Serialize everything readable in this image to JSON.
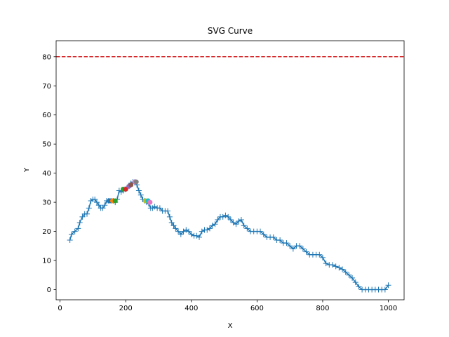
{
  "chart_data": {
    "type": "line",
    "title": "SVG Curve",
    "xlabel": "X",
    "ylabel": "Y",
    "xlim": [
      -12,
      1048
    ],
    "ylim": [
      -3.5,
      85.5
    ],
    "xticks": [
      0,
      200,
      400,
      600,
      800,
      1000
    ],
    "yticks": [
      0,
      10,
      20,
      30,
      40,
      50,
      60,
      70,
      80
    ],
    "grid": false,
    "hline": {
      "y": 80,
      "color": "#d62728",
      "style": "dashed"
    },
    "series": [
      {
        "color": "#1f77b4",
        "marker": "+",
        "x": [
          30,
          35,
          45,
          55,
          60,
          68,
          75,
          82,
          88,
          94,
          100,
          106,
          112,
          118,
          124,
          130,
          136,
          142,
          148,
          155,
          162,
          168,
          174,
          180,
          186,
          192,
          198,
          204,
          210,
          216,
          222,
          228,
          234,
          240,
          246,
          252,
          258,
          264,
          270,
          276,
          282,
          288,
          296,
          304,
          312,
          320,
          328,
          334,
          340,
          346,
          352,
          360,
          368,
          376,
          384,
          392,
          400,
          408,
          416,
          424,
          432,
          440,
          448,
          456,
          464,
          472,
          480,
          488,
          496,
          504,
          512,
          520,
          528,
          536,
          544,
          552,
          560,
          570,
          580,
          590,
          600,
          610,
          620,
          630,
          640,
          650,
          660,
          670,
          680,
          690,
          700,
          710,
          720,
          730,
          740,
          750,
          760,
          770,
          780,
          790,
          800,
          810,
          820,
          830,
          840,
          850,
          860,
          870,
          880,
          890,
          900,
          910,
          920,
          930,
          940,
          950,
          960,
          970,
          980,
          990,
          1000
        ],
        "y": [
          17,
          19,
          20,
          21,
          23,
          25,
          26,
          26,
          28,
          30.5,
          31,
          31,
          30,
          29,
          28,
          28,
          29,
          30.5,
          30.5,
          30.5,
          30.5,
          30,
          31,
          34,
          33.5,
          34,
          34.5,
          35,
          35.5,
          36.5,
          37,
          37,
          36,
          34,
          32.5,
          31,
          30.5,
          30,
          29.5,
          28,
          28,
          28.5,
          28,
          28,
          27,
          27,
          27,
          25,
          23,
          22,
          21,
          20,
          19,
          20,
          20.5,
          20,
          19,
          18.5,
          18.5,
          18,
          20,
          20.5,
          20.5,
          21,
          22,
          22.5,
          24,
          25,
          25,
          25.5,
          25,
          24,
          23,
          22.5,
          23.5,
          24,
          22,
          21,
          20,
          20,
          20,
          20,
          19,
          18,
          18,
          18,
          17,
          17,
          16,
          16,
          15,
          14,
          15,
          15,
          14,
          13,
          12,
          12,
          12,
          12,
          11,
          9,
          8.5,
          8.5,
          8,
          7.5,
          7,
          6,
          5,
          4,
          2.5,
          1,
          0,
          0,
          0,
          0,
          0,
          0,
          0,
          0,
          1.5
        ]
      }
    ],
    "highlights": [
      {
        "x": 150,
        "y": 30.5,
        "color": "#1f77b4"
      },
      {
        "x": 160,
        "y": 30.5,
        "color": "#ff7f0e"
      },
      {
        "x": 168,
        "y": 30.5,
        "color": "#2ca02c"
      },
      {
        "x": 192,
        "y": 34.5,
        "color": "#2ca02c"
      },
      {
        "x": 200,
        "y": 34.5,
        "color": "#d62728"
      },
      {
        "x": 210,
        "y": 35.5,
        "color": "#9467bd"
      },
      {
        "x": 216,
        "y": 36,
        "color": "#8c564b"
      },
      {
        "x": 228,
        "y": 37,
        "color": "#e377c2"
      },
      {
        "x": 232,
        "y": 37,
        "color": "#7f7f7f"
      },
      {
        "x": 260,
        "y": 30.5,
        "color": "#bcbd22"
      },
      {
        "x": 268,
        "y": 30.5,
        "color": "#17becf"
      },
      {
        "x": 274,
        "y": 30,
        "color": "#e377c2"
      }
    ]
  }
}
